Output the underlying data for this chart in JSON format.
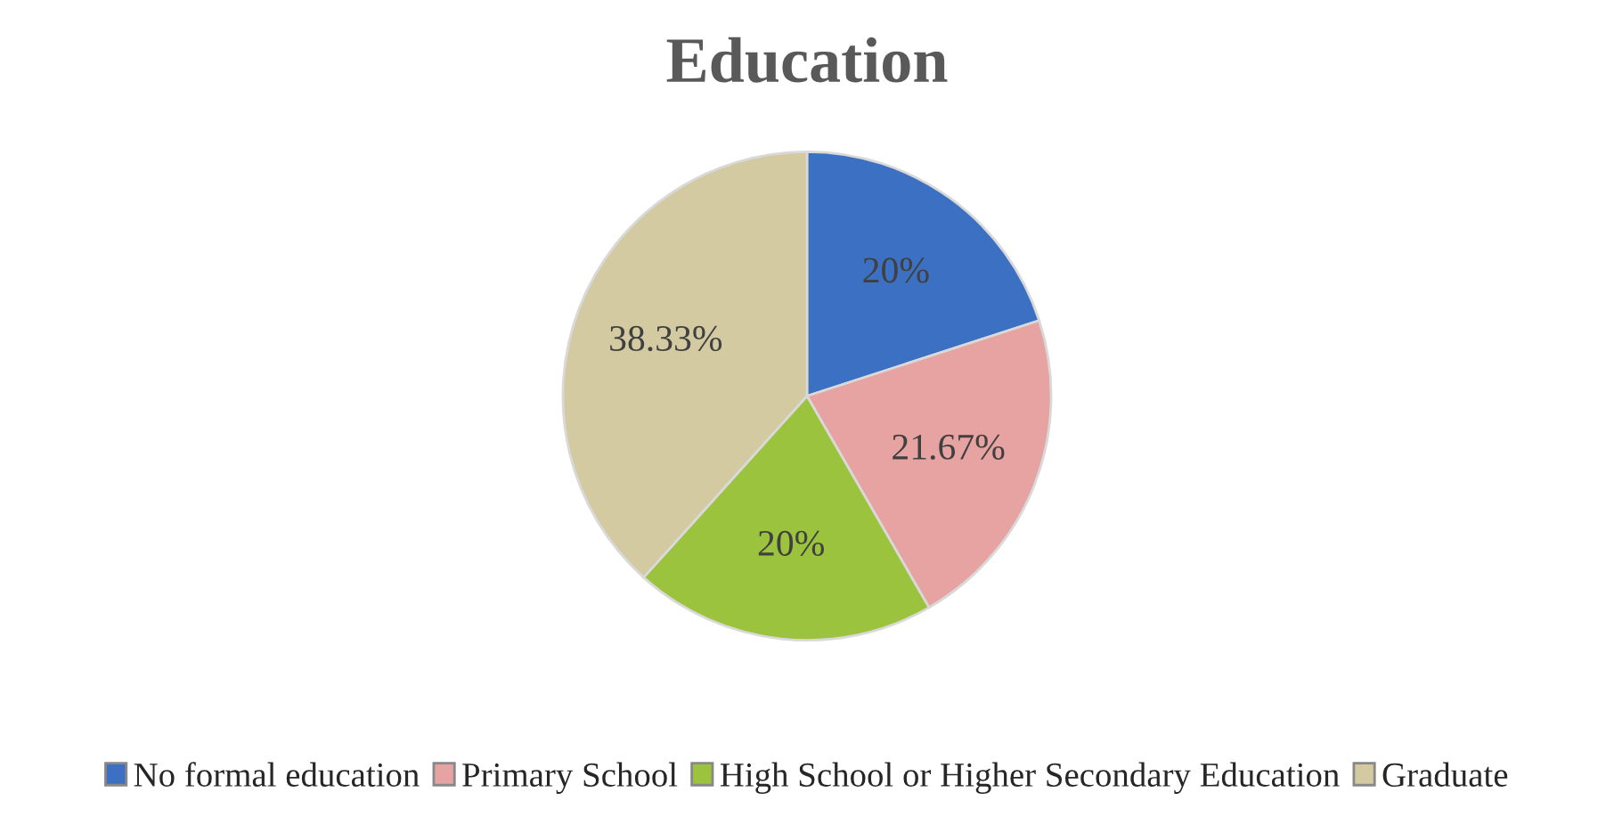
{
  "chart_data": {
    "type": "pie",
    "title": "Education",
    "categories": [
      "No formal education",
      "Primary School",
      "High School or Higher Secondary Education",
      "Graduate"
    ],
    "values": [
      20,
      21.67,
      20,
      38.33
    ],
    "colors": [
      "#3b70c2",
      "#e7a3a2",
      "#9cc33d",
      "#d3caa2"
    ],
    "value_labels": [
      "20%",
      "21.67%",
      "20%",
      "38.33%"
    ],
    "legend": "bottom"
  }
}
